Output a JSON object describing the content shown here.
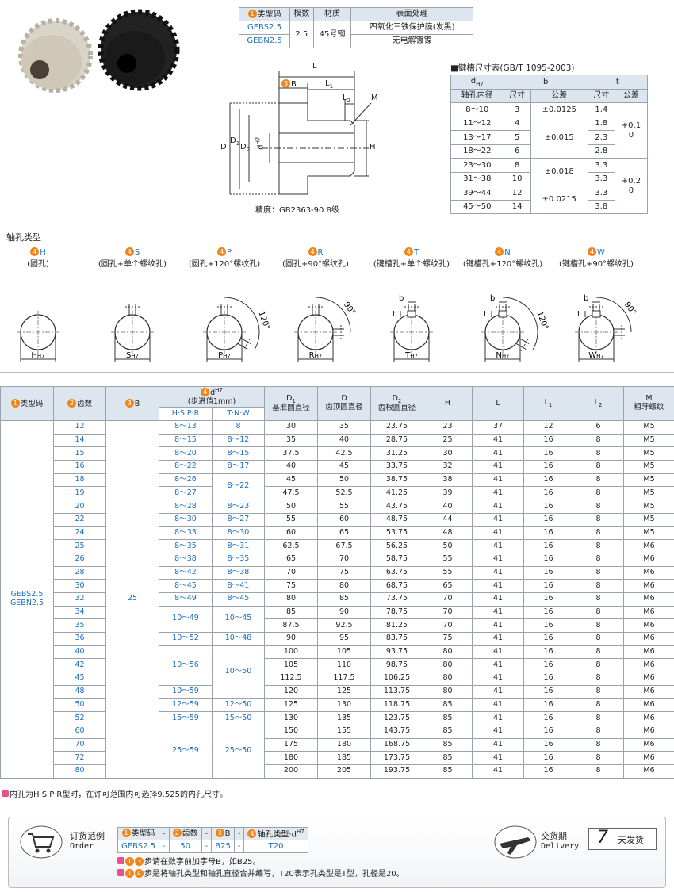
{
  "material_table": {
    "headers": [
      {
        "step": "1",
        "text": "类型码"
      },
      "模数",
      "材质",
      "表面处理"
    ],
    "rows": [
      [
        "GEBS2.5",
        "2.5",
        "45号钢",
        "四氧化三铁保护膜(发黑)"
      ],
      [
        "GEBN2.5",
        null,
        null,
        "无电解镀镍"
      ]
    ]
  },
  "drawing": {
    "labels": {
      "L": "L",
      "B": {
        "step": "3",
        "text": "B"
      },
      "L1": {
        "text": "L",
        "sub": "1"
      },
      "L2": {
        "text": "L",
        "sub": "2"
      },
      "M": "M",
      "D": "D",
      "D1": {
        "text": "D",
        "sub": "1"
      },
      "D2": {
        "text": "D",
        "sub": "2"
      },
      "d": {
        "text": "d",
        "sup": "H7"
      },
      "H": "H"
    },
    "caption": "精度：GB2363-90 8级"
  },
  "keyway_table": {
    "title": "■键槽尺寸表(GB/T 1095-2003)",
    "header_row1": [
      {
        "text": "d",
        "sub": "H7"
      },
      "b",
      "t"
    ],
    "header_row2": [
      "轴孔内径",
      "尺寸",
      "公差",
      "尺寸",
      "公差"
    ],
    "rows": [
      [
        "8～10",
        "3",
        "±0.0125",
        "1.4",
        {
          "upper": "+0.1",
          "lower": "0"
        }
      ],
      [
        "11～12",
        "4",
        "±0.015",
        "1.8",
        null
      ],
      [
        "13～17",
        "5",
        null,
        "2.3",
        null
      ],
      [
        "18～22",
        "6",
        null,
        "2.8",
        null
      ],
      [
        "23～30",
        "8",
        "±0.018",
        "3.3",
        {
          "upper": "+0.2",
          "lower": "0"
        }
      ],
      [
        "31～38",
        "10",
        null,
        "3.3",
        null
      ],
      [
        "39～44",
        "12",
        "±0.0215",
        "3.3",
        null
      ],
      [
        "45～50",
        "14",
        null,
        "3.8",
        null
      ]
    ]
  },
  "hole_types": {
    "title": "轴孔类型",
    "step": "4",
    "sub": "H7",
    "angle_120": "120°",
    "angle_90": "90°",
    "b": "b",
    "t": "t",
    "items": [
      {
        "code": "H",
        "name": "(圆孔)"
      },
      {
        "code": "S",
        "name": "(圆孔+单个螺纹孔)"
      },
      {
        "code": "P",
        "name": "(圆孔+120°螺纹孔)"
      },
      {
        "code": "R",
        "name": "(圆孔+90°螺纹孔)"
      },
      {
        "code": "T",
        "name": "(键槽孔+单个螺纹孔)"
      },
      {
        "code": "N",
        "name": "(键槽孔+120°螺纹孔)"
      },
      {
        "code": "W",
        "name": "(键槽孔+90°螺纹孔)"
      }
    ]
  },
  "main_table": {
    "header_row1": [
      {
        "step": "1",
        "text": "类型码"
      },
      {
        "step": "2",
        "text": "齿数"
      },
      {
        "step": "3",
        "text": "B"
      },
      {
        "step": "4",
        "text": "d",
        "sup": "H7",
        "name": "(步进值1mm)"
      },
      {
        "text": "D",
        "sub": "1",
        "name": "基准圆直径"
      },
      {
        "text": "D",
        "name": "齿顶圆直径"
      },
      {
        "text": "D",
        "sub": "2",
        "name": "齿根圆直径"
      },
      "H",
      "L",
      {
        "text": "L",
        "sub": "1"
      },
      {
        "text": "L",
        "sub": "2"
      },
      {
        "text": "M",
        "name": "粗牙螺纹"
      }
    ],
    "header_row2": [
      "H·S·P·R",
      "T·N·W"
    ],
    "type_codes": [
      "GEBS2.5",
      "GEBN2.5"
    ],
    "B": "25",
    "rows": [
      [
        "12",
        "8～13",
        "8",
        "30",
        "35",
        "23.75",
        "23",
        "37",
        "12",
        "6",
        "M5"
      ],
      [
        "14",
        "8～15",
        "8～12",
        "35",
        "40",
        "28.75",
        "25",
        "41",
        "16",
        "8",
        "M5"
      ],
      [
        "15",
        "8～20",
        "8～15",
        "37.5",
        "42.5",
        "31.25",
        "30",
        "41",
        "16",
        "8",
        "M5"
      ],
      [
        "16",
        "8～22",
        "8～17",
        "40",
        "45",
        "33.75",
        "32",
        "41",
        "16",
        "8",
        "M5"
      ],
      [
        "18",
        "8～26",
        "8～22",
        "45",
        "50",
        "38.75",
        "38",
        "41",
        "16",
        "8",
        "M5"
      ],
      [
        "19",
        "8～27",
        null,
        "47.5",
        "52.5",
        "41.25",
        "39",
        "41",
        "16",
        "8",
        "M5"
      ],
      [
        "20",
        "8～28",
        "8～23",
        "50",
        "55",
        "43.75",
        "40",
        "41",
        "16",
        "8",
        "M5"
      ],
      [
        "22",
        "8～30",
        "8～27",
        "55",
        "60",
        "48.75",
        "44",
        "41",
        "16",
        "8",
        "M5"
      ],
      [
        "24",
        "8～33",
        "8～30",
        "60",
        "65",
        "53.75",
        "48",
        "41",
        "16",
        "8",
        "M5"
      ],
      [
        "25",
        "8～35",
        "8～31",
        "62.5",
        "67.5",
        "56.25",
        "50",
        "41",
        "16",
        "8",
        "M6"
      ],
      [
        "26",
        "8～38",
        "8～35",
        "65",
        "70",
        "58.75",
        "55",
        "41",
        "16",
        "8",
        "M6"
      ],
      [
        "28",
        "8～42",
        "8～38",
        "70",
        "75",
        "63.75",
        "55",
        "41",
        "16",
        "8",
        "M6"
      ],
      [
        "30",
        "8～45",
        "8～41",
        "75",
        "80",
        "68.75",
        "65",
        "41",
        "16",
        "8",
        "M6"
      ],
      [
        "32",
        "8～49",
        "8～45",
        "80",
        "85",
        "73.75",
        "70",
        "41",
        "16",
        "8",
        "M6"
      ],
      [
        "34",
        "10～49",
        "10～45",
        "85",
        "90",
        "78.75",
        "70",
        "41",
        "16",
        "8",
        "M6"
      ],
      [
        "35",
        null,
        null,
        "87.5",
        "92.5",
        "81.25",
        "70",
        "41",
        "16",
        "8",
        "M6"
      ],
      [
        "36",
        "10～52",
        "10～48",
        "90",
        "95",
        "83.75",
        "75",
        "41",
        "16",
        "8",
        "M6"
      ],
      [
        "40",
        "10～56",
        "10～50",
        "100",
        "105",
        "93.75",
        "80",
        "41",
        "16",
        "8",
        "M6"
      ],
      [
        "42",
        null,
        null,
        "105",
        "110",
        "98.75",
        "80",
        "41",
        "16",
        "8",
        "M6"
      ],
      [
        "45",
        null,
        null,
        "112.5",
        "117.5",
        "106.25",
        "80",
        "41",
        "16",
        "8",
        "M6"
      ],
      [
        "48",
        "10～59",
        null,
        "120",
        "125",
        "113.75",
        "80",
        "41",
        "16",
        "8",
        "M6"
      ],
      [
        "50",
        "12～59",
        "12～50",
        "125",
        "130",
        "118.75",
        "85",
        "41",
        "16",
        "8",
        "M6"
      ],
      [
        "52",
        "15～59",
        "15～50",
        "130",
        "135",
        "123.75",
        "85",
        "41",
        "16",
        "8",
        "M6"
      ],
      [
        "60",
        "25～59",
        "25～50",
        "150",
        "155",
        "143.75",
        "85",
        "41",
        "16",
        "8",
        "M6"
      ],
      [
        "70",
        null,
        null,
        "175",
        "180",
        "168.75",
        "85",
        "41",
        "16",
        "8",
        "M6"
      ],
      [
        "72",
        null,
        null,
        "180",
        "185",
        "173.75",
        "85",
        "41",
        "16",
        "8",
        "M6"
      ],
      [
        "80",
        null,
        null,
        "200",
        "205",
        "193.75",
        "85",
        "41",
        "16",
        "8",
        "M6"
      ]
    ]
  },
  "table_note": "内孔为H·S·P·R型时，在许可范围内可选择9.525的内孔尺寸。",
  "order": {
    "title": "订货范例",
    "title_en": "Order",
    "headers": [
      {
        "step": "1",
        "text": "类型码"
      },
      "-",
      {
        "step": "2",
        "text": "齿数"
      },
      "-",
      {
        "step": "3",
        "text": "B"
      },
      "-",
      {
        "step": "4",
        "text": "轴孔类型·d",
        "sup": "H7"
      }
    ],
    "values": [
      "GEBS2.5",
      "-",
      "50",
      "-",
      "B25",
      "-",
      "T20"
    ],
    "notes": [
      {
        "steps": [
          "1",
          "3"
        ],
        "text": "步请在数字前加字母B，如B25。"
      },
      {
        "steps": [
          "1",
          "4"
        ],
        "text": "步是将轴孔类型和轴孔直径合并编写，T20表示孔类型是T型，孔径是20。"
      }
    ]
  },
  "delivery": {
    "title": "交货期",
    "title_en": "Delivery",
    "days": "7",
    "suffix": "天发货"
  }
}
